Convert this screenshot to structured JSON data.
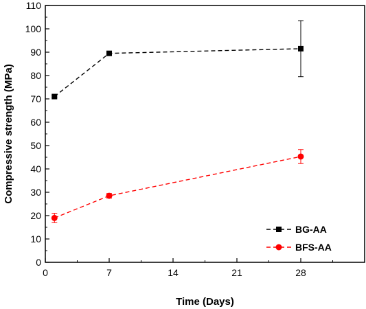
{
  "chart_data": {
    "type": "line",
    "title": "",
    "xlabel": "Time (Days)",
    "ylabel": "Compressive strength (MPa)",
    "xlim": [
      0,
      35
    ],
    "ylim": [
      0,
      110
    ],
    "xticks": [
      0,
      7,
      14,
      21,
      28
    ],
    "yticks": [
      0,
      10,
      20,
      30,
      40,
      50,
      60,
      70,
      80,
      90,
      100,
      110
    ],
    "grid": false,
    "legend_position": "bottom-right",
    "series": [
      {
        "name": "BG-AA",
        "color": "#000000",
        "marker": "square",
        "line_style": "dashed",
        "x": [
          1,
          7,
          28
        ],
        "y": [
          71,
          89.5,
          91.5
        ],
        "error": [
          0.5,
          0.5,
          12
        ]
      },
      {
        "name": "BFS-AA",
        "color": "#ff0000",
        "marker": "circle",
        "line_style": "dashed",
        "x": [
          1,
          7,
          28
        ],
        "y": [
          19,
          28.5,
          45.3
        ],
        "error": [
          2,
          1,
          3
        ]
      }
    ]
  }
}
